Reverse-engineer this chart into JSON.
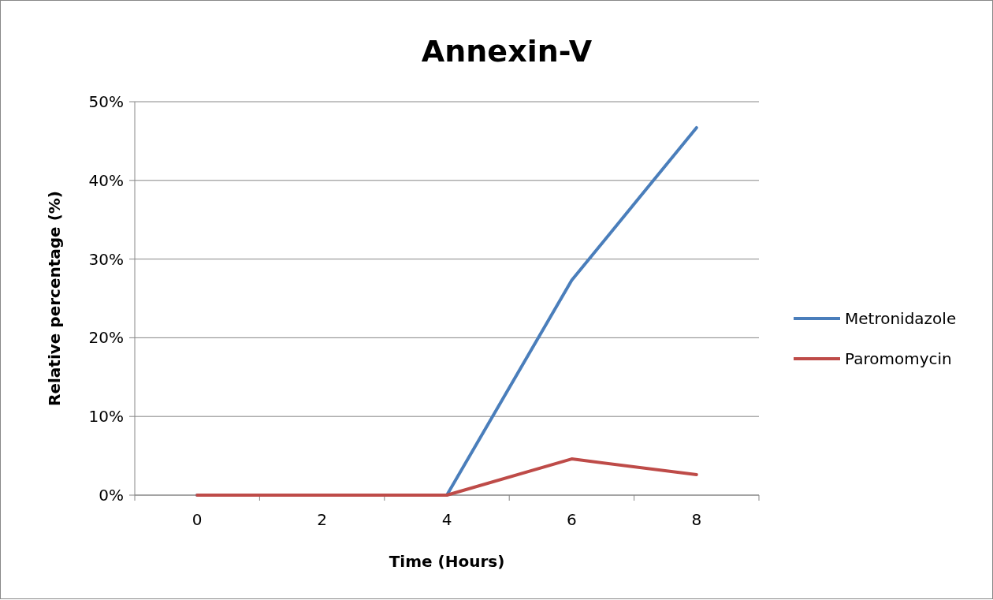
{
  "chart_data": {
    "type": "line",
    "title": "Annexin-V",
    "xlabel": "Time (Hours)",
    "ylabel": "Relative percentage (%)",
    "categories": [
      "0",
      "2",
      "4",
      "6",
      "8"
    ],
    "series": [
      {
        "name": "Metronidazole",
        "color": "#4a7ebb",
        "values": [
          0,
          0,
          0,
          27.3,
          46.7
        ]
      },
      {
        "name": "Paromomycin",
        "color": "#be4b48",
        "values": [
          0,
          0,
          0,
          4.6,
          2.6
        ]
      }
    ],
    "ylim": [
      0,
      50
    ],
    "yticks": [
      {
        "value": 0,
        "label": "0%"
      },
      {
        "value": 10,
        "label": "10%"
      },
      {
        "value": 20,
        "label": "20%"
      },
      {
        "value": 30,
        "label": "30%"
      },
      {
        "value": 40,
        "label": "40%"
      },
      {
        "value": 50,
        "label": "50%"
      }
    ],
    "grid": "y",
    "legend": "right",
    "marker": "none",
    "line_style": "solid"
  }
}
